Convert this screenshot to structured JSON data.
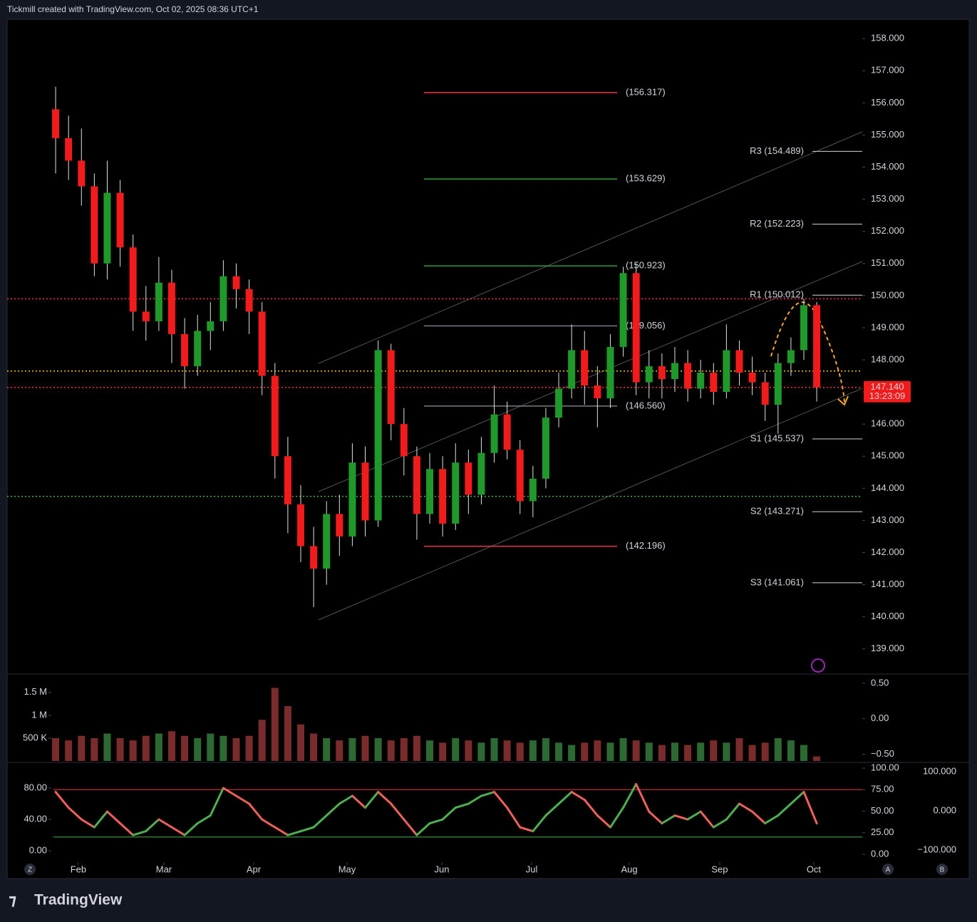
{
  "header": "Tickmill created with TradingView.com, Oct 02, 2025 08:36 UTC+1",
  "footer": {
    "logo": "TradingView"
  },
  "buttons": [
    "Z",
    "A",
    "B"
  ],
  "chart_data": [
    {
      "type": "candlestick",
      "categories": [
        null,
        null,
        null,
        null,
        null,
        null,
        null,
        null,
        null,
        null,
        null,
        null,
        null,
        null,
        null,
        null,
        null,
        null,
        null,
        null,
        null,
        null,
        null,
        null,
        null,
        null,
        null,
        null,
        null,
        null,
        null,
        null,
        null,
        null,
        null,
        null,
        null,
        null,
        null,
        null,
        null,
        null,
        null,
        null,
        null,
        null,
        null,
        null,
        null,
        null,
        null,
        null,
        null,
        null,
        null,
        null,
        null,
        null,
        null,
        null
      ],
      "open": [
        155.8,
        154.9,
        154.2,
        153.4,
        151.0,
        153.2,
        151.5,
        149.5,
        149.2,
        150.4,
        148.8,
        147.8,
        148.9,
        149.2,
        150.6,
        150.2,
        149.5,
        147.5,
        145.0,
        143.5,
        142.2,
        141.5,
        143.2,
        142.5,
        144.8,
        143.0,
        148.3,
        146.0,
        145.0,
        143.2,
        144.6,
        142.9,
        144.8,
        143.8,
        145.1,
        146.3,
        145.2,
        143.6,
        144.3,
        146.2,
        147.1,
        148.3,
        147.2,
        146.8,
        148.4,
        150.7,
        147.3,
        147.8,
        147.4,
        147.9,
        147.1,
        147.6,
        147.0,
        148.3,
        147.6,
        147.3,
        146.6,
        147.9,
        148.3,
        149.7
      ],
      "high": [
        156.5,
        155.6,
        155.2,
        153.8,
        154.2,
        153.6,
        151.9,
        150.3,
        151.2,
        150.8,
        149.3,
        149.4,
        149.8,
        151.1,
        151.0,
        150.5,
        149.8,
        147.9,
        145.6,
        144.1,
        142.8,
        143.6,
        143.8,
        145.4,
        145.3,
        148.6,
        148.5,
        146.5,
        145.3,
        145.1,
        145.0,
        145.4,
        145.2,
        145.6,
        147.2,
        146.7,
        145.5,
        144.7,
        146.5,
        147.6,
        149.1,
        148.9,
        147.8,
        148.8,
        150.9,
        151.0,
        148.3,
        148.2,
        148.4,
        148.3,
        148.0,
        147.9,
        149.1,
        148.6,
        148.1,
        147.6,
        148.2,
        148.7,
        149.9,
        149.8
      ],
      "low": [
        153.8,
        153.6,
        152.8,
        150.6,
        150.5,
        150.9,
        148.9,
        148.6,
        148.9,
        147.9,
        147.1,
        147.5,
        148.3,
        148.9,
        149.6,
        148.8,
        146.9,
        144.3,
        142.6,
        141.7,
        140.3,
        141.0,
        141.9,
        142.2,
        142.5,
        142.8,
        145.5,
        144.4,
        142.4,
        142.9,
        142.5,
        142.7,
        143.2,
        143.5,
        144.8,
        144.9,
        143.2,
        143.1,
        144.0,
        145.9,
        146.8,
        146.6,
        145.9,
        146.5,
        148.1,
        146.9,
        146.8,
        146.8,
        147.0,
        146.7,
        146.8,
        146.6,
        146.8,
        147.2,
        146.9,
        146.1,
        145.7,
        147.5,
        148.0,
        146.7
      ],
      "close": [
        154.9,
        154.2,
        153.4,
        151.0,
        153.2,
        151.5,
        149.5,
        149.2,
        150.4,
        148.8,
        147.8,
        148.9,
        149.2,
        150.6,
        150.2,
        149.5,
        147.5,
        145.0,
        143.5,
        142.2,
        141.5,
        143.2,
        142.5,
        144.8,
        143.0,
        148.3,
        146.0,
        145.0,
        143.2,
        144.6,
        142.9,
        144.8,
        143.8,
        145.1,
        146.3,
        145.2,
        143.6,
        144.3,
        146.2,
        147.1,
        148.3,
        147.2,
        146.8,
        148.4,
        150.7,
        147.3,
        147.8,
        147.4,
        147.9,
        147.1,
        147.6,
        147.0,
        148.3,
        147.6,
        147.3,
        146.6,
        147.9,
        148.3,
        149.7,
        147.14
      ],
      "up_color": "#1f9a2a",
      "down_color": "#f21b1b",
      "xlim": [
        -3.76,
        62.53
      ],
      "xticks": [
        {
          "value": 1.76,
          "label": "Feb"
        },
        {
          "value": 8.39,
          "label": "Mar"
        },
        {
          "value": 15.35,
          "label": "Apr"
        },
        {
          "value": 22.59,
          "label": "May"
        },
        {
          "value": 29.94,
          "label": "Jun"
        },
        {
          "value": 36.9,
          "label": "Jul"
        },
        {
          "value": 44.47,
          "label": "Aug"
        },
        {
          "value": 51.48,
          "label": "Sep"
        },
        {
          "value": 58.77,
          "label": "Oct"
        }
      ],
      "ylim": [
        138.24,
        158.58
      ],
      "yticks": [
        {
          "value": 158,
          "label": "158.000"
        },
        {
          "value": 157,
          "label": "157.000"
        },
        {
          "value": 156,
          "label": "156.000"
        },
        {
          "value": 155,
          "label": "155.000"
        },
        {
          "value": 154,
          "label": "154.000"
        },
        {
          "value": 153,
          "label": "153.000"
        },
        {
          "value": 152,
          "label": "152.000"
        },
        {
          "value": 151,
          "label": "151.000"
        },
        {
          "value": 150,
          "label": "150.000"
        },
        {
          "value": 149,
          "label": "149.000"
        },
        {
          "value": 148,
          "label": "148.000"
        },
        {
          "value": 147,
          "label": "147.000"
        },
        {
          "value": 146,
          "label": "146.000"
        },
        {
          "value": 145,
          "label": "145.000"
        },
        {
          "value": 144,
          "label": "144.000"
        },
        {
          "value": 143,
          "label": "143.000"
        },
        {
          "value": 142,
          "label": "142.000"
        },
        {
          "value": 141,
          "label": "141.000"
        },
        {
          "value": 140,
          "label": "140.000"
        },
        {
          "value": 139,
          "label": "139.000"
        }
      ],
      "levels": [
        {
          "value": 156.317,
          "label": "(156.317)",
          "color": "#f23645"
        },
        {
          "value": 153.629,
          "label": "(153.629)",
          "color": "#2e9e3a"
        },
        {
          "value": 150.923,
          "label": "(150.923)",
          "color": "#2e9e3a"
        },
        {
          "value": 149.056,
          "label": "(149.056)",
          "color": "#787b86"
        },
        {
          "value": 146.56,
          "label": "(146.560)",
          "color": "#787b86"
        },
        {
          "value": 142.196,
          "label": "(142.196)",
          "color": "#f23645"
        }
      ],
      "pivots": [
        {
          "value": 154.489,
          "label": "R3 (154.489)"
        },
        {
          "value": 152.223,
          "label": "R2 (152.223)"
        },
        {
          "value": 150.012,
          "label": "R1 (150.012)"
        },
        {
          "value": 145.537,
          "label": "S1 (145.537)"
        },
        {
          "value": 143.271,
          "label": "S2 (143.271)"
        },
        {
          "value": 141.061,
          "label": "S3 (141.061)"
        }
      ],
      "dotted_levels": [
        {
          "value": 149.9,
          "color": "#f23645"
        },
        {
          "value": 147.65,
          "color": "#f5c518"
        },
        {
          "value": 147.14,
          "color": "#f23645"
        },
        {
          "value": 143.75,
          "color": "#4caf50"
        }
      ],
      "last_price": {
        "value": 147.14,
        "label": "147.140",
        "countdown": "13:23:09"
      }
    },
    {
      "type": "bar",
      "values": [
        0.5,
        0.45,
        0.55,
        0.5,
        0.6,
        0.5,
        0.45,
        0.55,
        0.6,
        0.65,
        0.55,
        0.5,
        0.6,
        0.55,
        0.5,
        0.55,
        0.9,
        1.6,
        1.2,
        0.8,
        0.6,
        0.5,
        0.45,
        0.5,
        0.55,
        0.5,
        0.45,
        0.5,
        0.55,
        0.45,
        0.4,
        0.5,
        0.45,
        0.4,
        0.5,
        0.45,
        0.4,
        0.45,
        0.5,
        0.4,
        0.35,
        0.4,
        0.45,
        0.4,
        0.5,
        0.45,
        0.4,
        0.35,
        0.4,
        0.35,
        0.4,
        0.45,
        0.4,
        0.5,
        0.35,
        0.4,
        0.5,
        0.45,
        0.35,
        0.1
      ],
      "up_color": "#2d6a33",
      "down_color": "#7a2c2c",
      "ylim": [
        0,
        1.84
      ],
      "yticks": [
        {
          "value": 1.5,
          "label": "1.5 M"
        },
        {
          "value": 1,
          "label": "1 M"
        },
        {
          "value": 0.5,
          "label": "500 K"
        }
      ],
      "y2lim": [
        -0.596,
        0.59
      ],
      "y2ticks": [
        {
          "value": 0.5,
          "label": "0.50"
        },
        {
          "value": 0,
          "label": "0.00"
        },
        {
          "value": -0.5,
          "label": "−0.50"
        }
      ]
    },
    {
      "type": "line",
      "series": [
        {
          "values": [
            75,
            55,
            40,
            30,
            50,
            35,
            20,
            25,
            40,
            30,
            20,
            35,
            45,
            80,
            70,
            60,
            40,
            30,
            20,
            25,
            30,
            45,
            60,
            70,
            55,
            75,
            60,
            40,
            20,
            35,
            40,
            55,
            60,
            70,
            75,
            55,
            30,
            25,
            45,
            60,
            75,
            65,
            45,
            30,
            55,
            85,
            50,
            35,
            45,
            40,
            50,
            30,
            40,
            60,
            50,
            35,
            45,
            60,
            75,
            35
          ],
          "up_color": "#4caf50",
          "down_color": "#f0605a"
        }
      ],
      "ylim": [
        -14.5,
        110.9
      ],
      "yticks": [
        {
          "value": 80,
          "label": "80.00"
        },
        {
          "value": 40,
          "label": "40.00"
        },
        {
          "value": 0,
          "label": "0.00"
        }
      ],
      "y2lim": [
        -9.1,
        105
      ],
      "y2ticks": [
        {
          "value": 100,
          "label": "100.00"
        },
        {
          "value": 75,
          "label": "75.00"
        },
        {
          "value": 50,
          "label": "50.00"
        },
        {
          "value": 25,
          "label": "25.00"
        },
        {
          "value": 0,
          "label": "0.00"
        }
      ],
      "y2_lines": [
        {
          "value": 75,
          "color": "#f23645"
        },
        {
          "value": 20,
          "color": "#4caf50"
        }
      ],
      "y3lim": [
        -131,
        120
      ],
      "y3ticks": [
        {
          "value": 100,
          "label": "100.000"
        },
        {
          "value": 0,
          "label": "0.000"
        },
        {
          "value": -100,
          "label": "−100.000"
        }
      ]
    }
  ]
}
